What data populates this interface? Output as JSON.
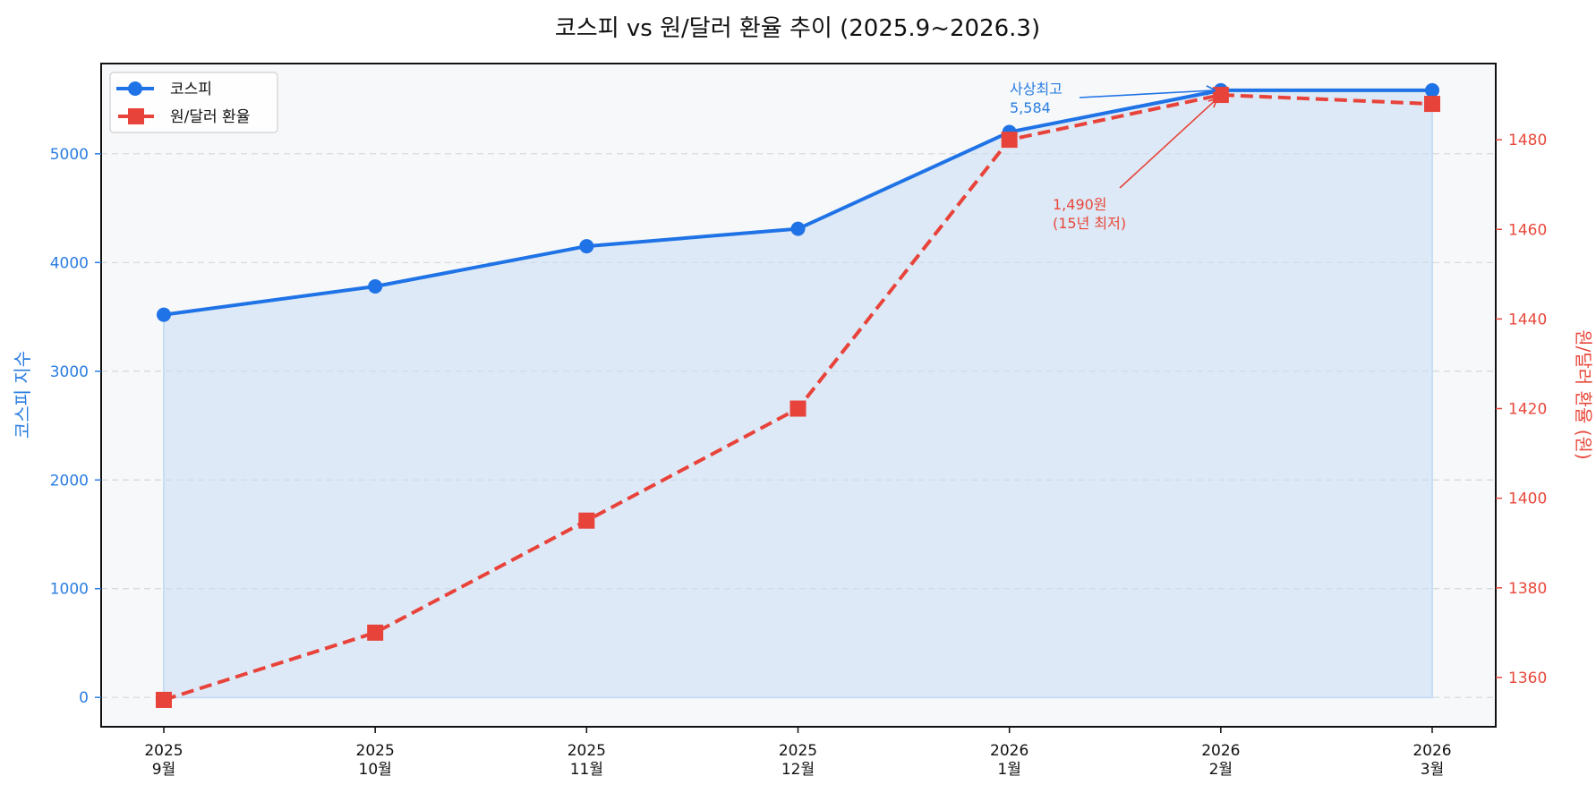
{
  "chart_data": {
    "type": "line",
    "title": "코스피 vs 원/달러 환율 추이 (2025.9~2026.3)",
    "categories": [
      "2025\n9월",
      "2025\n10월",
      "2025\n11월",
      "2025\n12월",
      "2026\n1월",
      "2026\n2월",
      "2026\n3월"
    ],
    "category_lines": [
      [
        "2025",
        "9월"
      ],
      [
        "2025",
        "10월"
      ],
      [
        "2025",
        "11월"
      ],
      [
        "2025",
        "12월"
      ],
      [
        "2026",
        "1월"
      ],
      [
        "2026",
        "2월"
      ],
      [
        "2026",
        "3월"
      ]
    ],
    "series": [
      {
        "name": "코스피",
        "axis": "left",
        "color": "#1f73e6",
        "marker": "circle",
        "linestyle": "solid",
        "fill": true,
        "values": [
          3520,
          3780,
          4150,
          4310,
          5200,
          5584,
          5584
        ]
      },
      {
        "name": "원/달러 환율",
        "axis": "right",
        "color": "#e8433a",
        "marker": "square",
        "linestyle": "dashed",
        "values": [
          1355,
          1370,
          1395,
          1420,
          1480,
          1490,
          1488
        ]
      }
    ],
    "ylabel": "코스피 지수",
    "ylabel_right": "원/달러 환율 (원)",
    "xlabel": "",
    "ylim": [
      -270,
      5830
    ],
    "ylim_right": [
      1349,
      1497
    ],
    "yticks": [
      0,
      1000,
      2000,
      3000,
      4000,
      5000
    ],
    "yticks_right": [
      1360,
      1380,
      1400,
      1420,
      1440,
      1460,
      1480
    ],
    "grid": true,
    "legend_position": "upper left",
    "annotations": [
      {
        "text_lines": [
          "사상최고",
          "5,584"
        ],
        "series": "코스피",
        "point_index": 5,
        "color": "#1f73e6"
      },
      {
        "text_lines": [
          "1,490원",
          "(15년 최저)"
        ],
        "series": "원/달러 환율",
        "point_index": 5,
        "color": "#e8433a"
      }
    ]
  }
}
